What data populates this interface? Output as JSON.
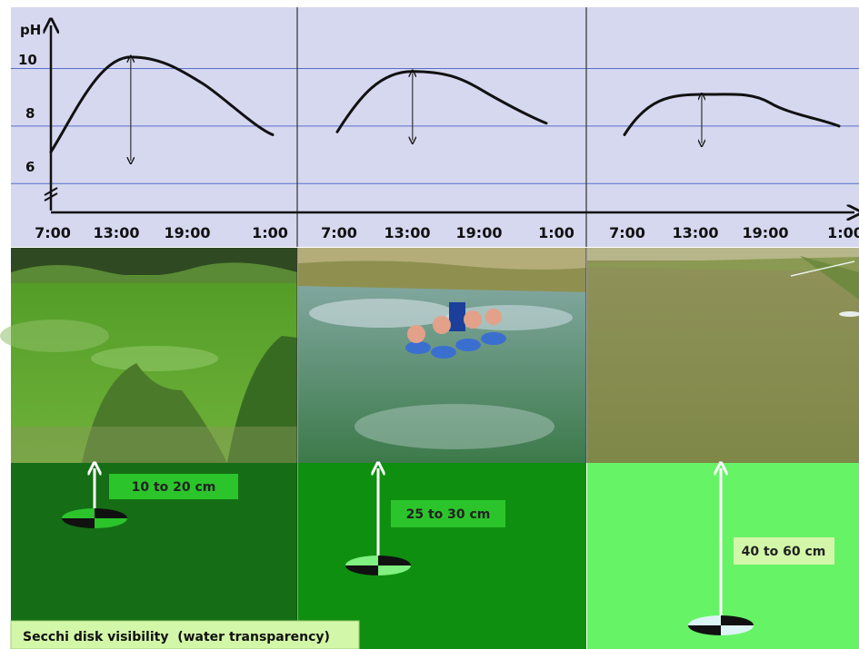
{
  "chart_data": [
    {
      "type": "line",
      "ylabel": "pH",
      "y_ticks": [
        "10",
        "8",
        "6"
      ],
      "ylim": [
        5,
        11.5
      ],
      "x_ticks": [
        "7:00",
        "13:00",
        "19:00",
        "1:00"
      ],
      "grid": true,
      "series": [
        {
          "x": [
            "7:00",
            "13:00",
            "19:00",
            "1:00"
          ],
          "y": [
            7.1,
            10.4,
            9.5,
            7.7
          ]
        }
      ]
    },
    {
      "type": "line",
      "x_ticks": [
        "7:00",
        "13:00",
        "19:00",
        "1:00"
      ],
      "ylim": [
        5,
        11.5
      ],
      "grid": true,
      "series": [
        {
          "x": [
            "7:00",
            "13:00",
            "19:00",
            "1:00"
          ],
          "y": [
            7.8,
            9.9,
            9.3,
            8.1
          ]
        }
      ]
    },
    {
      "type": "line",
      "x_ticks": [
        "7:00",
        "13:00",
        "19:00",
        "1:00"
      ],
      "ylim": [
        5,
        11.5
      ],
      "grid": true,
      "series": [
        {
          "x": [
            "7:00",
            "13:00",
            "19:00",
            "1:00"
          ],
          "y": [
            7.7,
            9.1,
            8.8,
            8.0
          ]
        }
      ]
    }
  ],
  "depth_labels": [
    "10 to 20 cm",
    "25 to 30 cm",
    "40 to 60 cm"
  ],
  "caption": "Secchi disk visibility  (water transparency)",
  "colors": {
    "chart_bg": "#d5d8ef",
    "gridline": "#5a6fc8",
    "panel1_water": "#156e15",
    "panel2_water": "#0f8f0f",
    "panel3_water": "#66f366",
    "label_box": "#2bc52b",
    "label_box_light": "#d3f7a8"
  },
  "icons": [
    "up-arrow-icon",
    "secchi-disk-icon",
    "double-arrow-icon"
  ]
}
